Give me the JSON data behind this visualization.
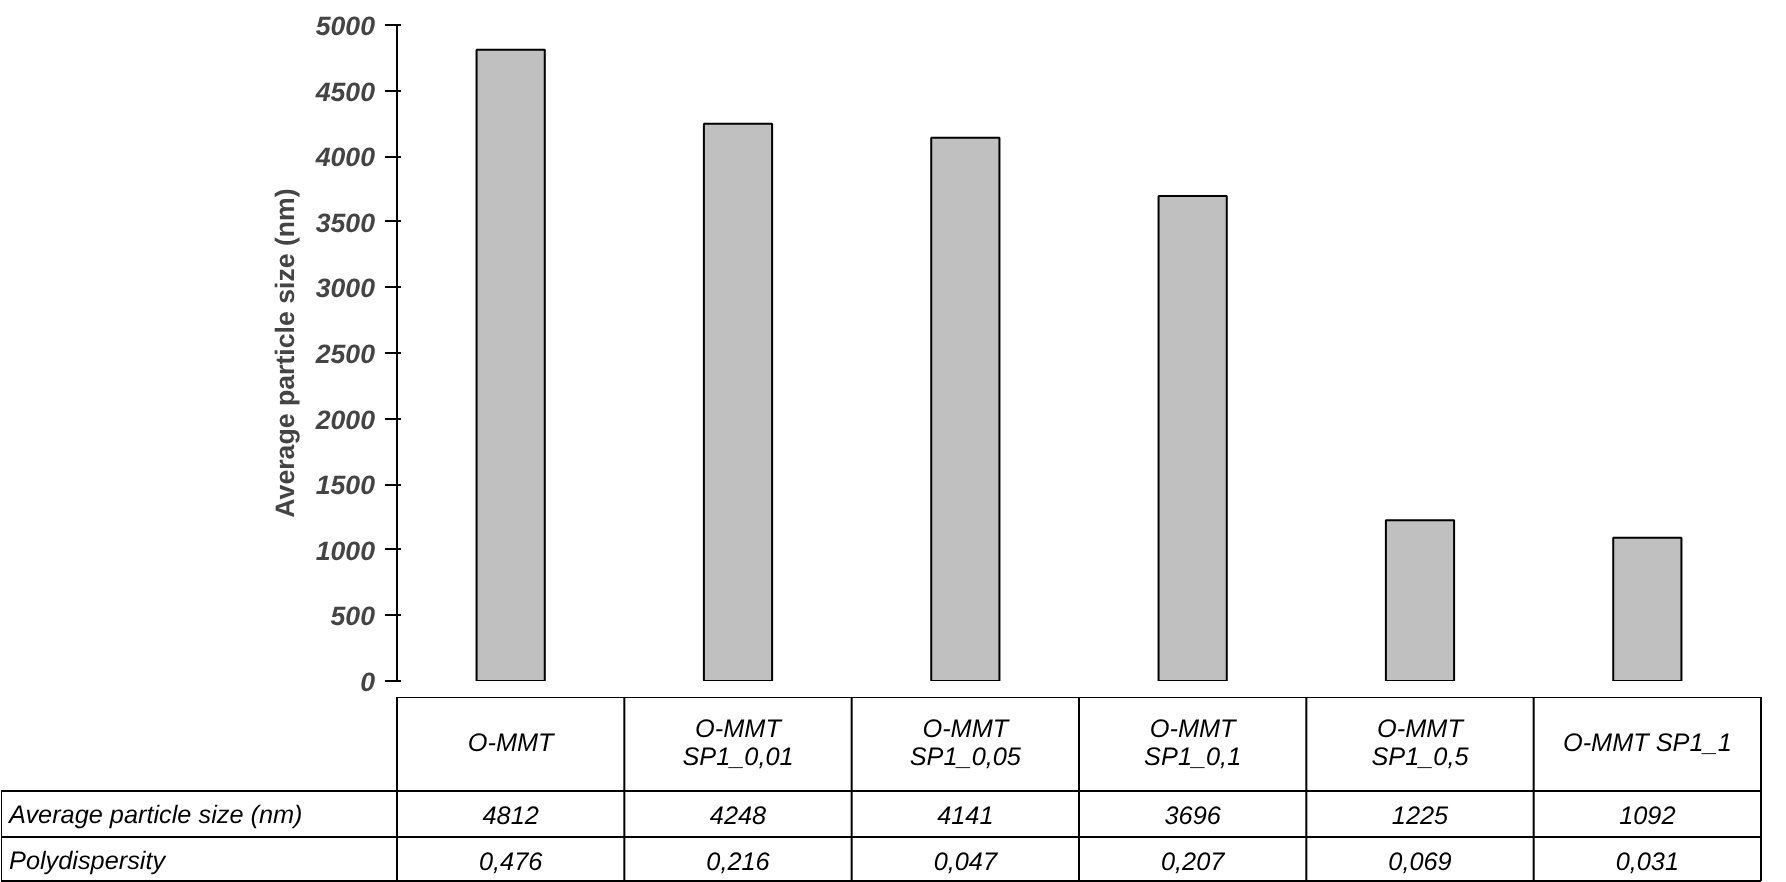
{
  "chart_data": {
    "type": "bar",
    "ylabel": "Average particle size (nm)",
    "categories": [
      "O-MMT",
      "O-MMT\nSP1_0,01",
      "O-MMT\nSP1_0,05",
      "O-MMT\nSP1_0,1",
      "O-MMT\nSP1_0,5",
      "O-MMT SP1_1"
    ],
    "series": [
      {
        "name": "Average particle size (nm)",
        "color": "#c0c0c0",
        "values": [
          4812,
          4248,
          4141,
          3696,
          1225,
          1092
        ]
      }
    ],
    "annotations": [
      "Polydispersity",
      "0,476",
      "0,216",
      "0,047",
      "0,207",
      "0,069",
      "0,031"
    ],
    "ylim": [
      0,
      5000
    ],
    "yticks": [
      0,
      500,
      1000,
      1500,
      2000,
      2500,
      3000,
      3500,
      4000,
      4500,
      5000
    ],
    "grid": false,
    "data_labels": true
  }
}
